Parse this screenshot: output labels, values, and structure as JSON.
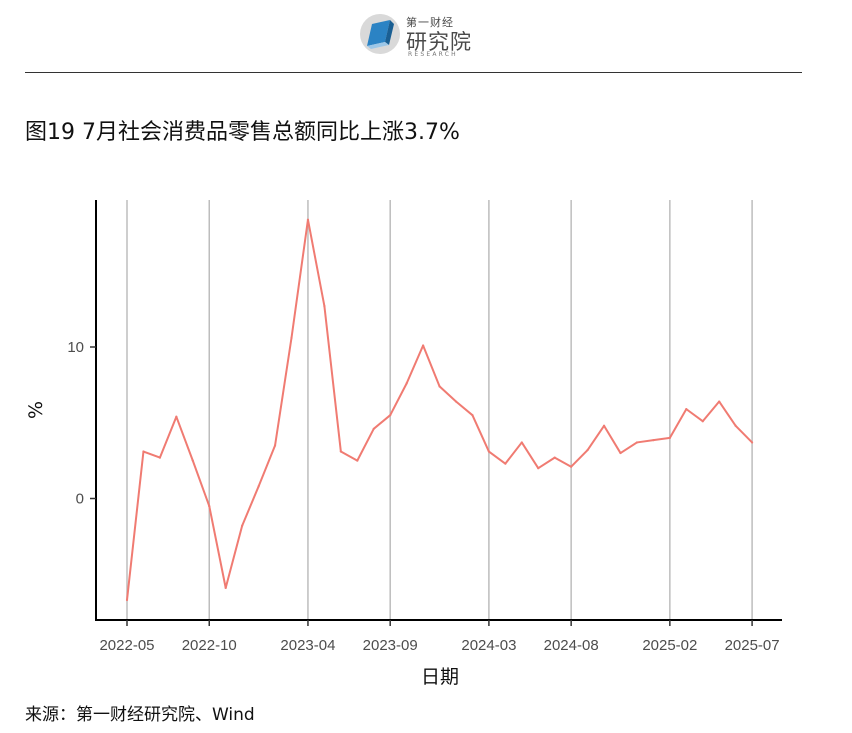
{
  "header": {
    "logo_top": "第一财经",
    "logo_main": "研究院",
    "logo_sub": "RESEARCH",
    "logo_icon": "book-cube-icon",
    "logo_color": "#2b83c4"
  },
  "title": "图19 7月社会消费品零售总额同比上涨3.7%",
  "source": "来源：第一财经研究院、Wind",
  "chart_data": {
    "type": "line",
    "title": "图19 7月社会消费品零售总额同比上涨3.7%",
    "xlabel": "日期",
    "ylabel": "%",
    "x_tick_labels": [
      "2022-05",
      "2022-10",
      "2023-04",
      "2023-09",
      "2024-03",
      "2024-08",
      "2025-02",
      "2025-07"
    ],
    "y_ticks": [
      0,
      10
    ],
    "ylim": [
      -8.0,
      20.0
    ],
    "grid": "vertical lines at x ticks",
    "line_color": "#f07b72",
    "series": [
      {
        "x": [
          "2022-05",
          "2022-06",
          "2022-07",
          "2022-08",
          "2022-09",
          "2022-10",
          "2022-11",
          "2022-12",
          "2023-01",
          "2023-02",
          "2023-03",
          "2023-04",
          "2023-05",
          "2023-06",
          "2023-07",
          "2023-08",
          "2023-09",
          "2023-10",
          "2023-11",
          "2023-12",
          "2024-01",
          "2024-02",
          "2024-03",
          "2024-04",
          "2024-05",
          "2024-06",
          "2024-07",
          "2024-08",
          "2024-09",
          "2024-10",
          "2024-11",
          "2024-12",
          "2025-01",
          "2025-02",
          "2025-03",
          "2025-04",
          "2025-05",
          "2025-06",
          "2025-07"
        ],
        "values": [
          -6.7,
          3.1,
          2.7,
          5.4,
          2.5,
          -0.5,
          -5.9,
          -1.8,
          0.8,
          3.5,
          10.6,
          18.4,
          12.7,
          3.1,
          2.5,
          4.6,
          5.5,
          7.6,
          10.1,
          7.4,
          6.4,
          5.5,
          3.1,
          2.3,
          3.7,
          2.0,
          2.7,
          2.1,
          3.2,
          4.8,
          3.0,
          3.7,
          3.85,
          4.0,
          5.9,
          5.1,
          6.4,
          4.8,
          3.7
        ]
      }
    ]
  }
}
